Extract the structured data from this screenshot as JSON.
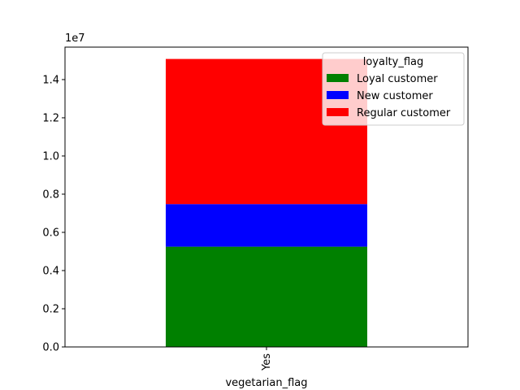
{
  "chart_data": {
    "type": "bar",
    "stacked": true,
    "categories": [
      "Yes"
    ],
    "series": [
      {
        "name": "Loyal customer",
        "values": [
          5250000
        ],
        "color": "#008000"
      },
      {
        "name": "New customer",
        "values": [
          2230000
        ],
        "color": "#0000ff"
      },
      {
        "name": "Regular customer",
        "values": [
          7600000
        ],
        "color": "#ff0000"
      }
    ],
    "xlabel": "vegetarian_flag",
    "ylabel": "",
    "ylim": [
      0,
      15700000
    ],
    "yticks": [
      0,
      2000000,
      4000000,
      6000000,
      8000000,
      10000000,
      12000000,
      14000000
    ],
    "ytick_labels": [
      "0.0",
      "0.2",
      "0.4",
      "0.6",
      "0.8",
      "1.0",
      "1.2",
      "1.4"
    ],
    "offset_text": "1e7",
    "xtick_rotation": "vertical",
    "legend": {
      "title": "loyalty_flag",
      "placement": "upper-right"
    },
    "grid": false
  }
}
